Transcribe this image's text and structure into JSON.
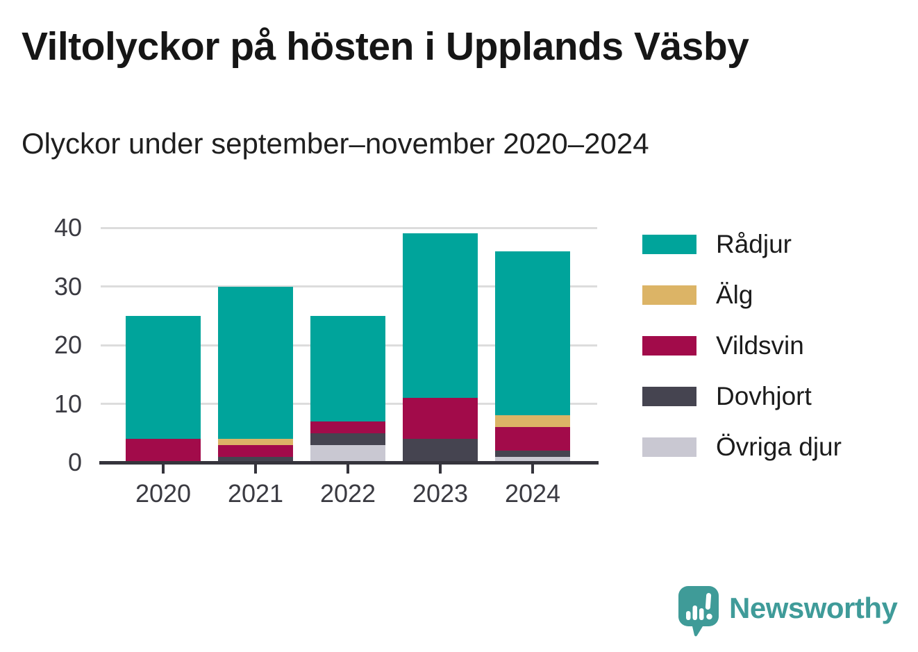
{
  "header": {
    "title": "Viltolyckor på hösten i Upplands Väsby",
    "subtitle": "Olyckor under september–november 2020–2024"
  },
  "chart_data": {
    "type": "bar",
    "stacked": true,
    "title": "Viltolyckor på hösten i Upplands Väsby",
    "subtitle": "Olyckor under september–november 2020–2024",
    "categories": [
      "2020",
      "2021",
      "2022",
      "2023",
      "2024"
    ],
    "series": [
      {
        "name": "Rådjur",
        "color": "#00a49b",
        "values": [
          21,
          26,
          18,
          28,
          28
        ]
      },
      {
        "name": "Älg",
        "color": "#dcb466",
        "values": [
          0,
          1,
          0,
          0,
          2
        ]
      },
      {
        "name": "Vildsvin",
        "color": "#a20b4a",
        "values": [
          4,
          2,
          2,
          7,
          4
        ]
      },
      {
        "name": "Dovhjort",
        "color": "#454450",
        "values": [
          0,
          1,
          2,
          4,
          1
        ]
      },
      {
        "name": "Övriga djur",
        "color": "#c9c8d2",
        "values": [
          0,
          0,
          3,
          0,
          1
        ]
      }
    ],
    "stack_order_bottom_to_top": [
      "Övriga djur",
      "Dovhjort",
      "Vildsvin",
      "Älg",
      "Rådjur"
    ],
    "totals": [
      25,
      30,
      25,
      39,
      36
    ],
    "xlabel": "",
    "ylabel": "",
    "ylim": [
      0,
      40
    ],
    "yticks": [
      0,
      10,
      20,
      30,
      40
    ],
    "grid": true,
    "legend_position": "right",
    "axis_color": "#35343c",
    "grid_color": "#dcdcdc",
    "label_color": "#3a3a41"
  },
  "branding": {
    "logo_text": "Newsworthy",
    "logo_color": "#3f9b99",
    "logo_icon": "speech-bubble-bar-chart-exclamation"
  }
}
